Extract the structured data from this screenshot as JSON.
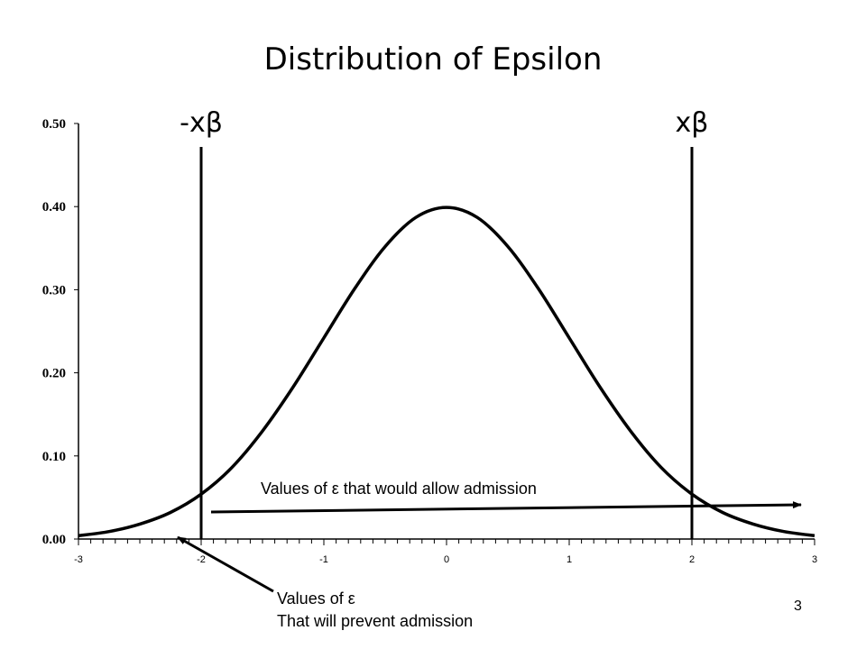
{
  "chart_data": {
    "type": "line",
    "title": "Distribution of Epsilon",
    "xlabel": "",
    "ylabel": "",
    "xlim": [
      -3,
      3
    ],
    "ylim": [
      0,
      0.5
    ],
    "x_ticks": [
      "-3",
      "-2",
      "-1",
      "0",
      "1",
      "2",
      "3"
    ],
    "y_ticks": [
      "0.00",
      "0.10",
      "0.20",
      "0.30",
      "0.40",
      "0.50"
    ],
    "grid": false,
    "series": [
      {
        "x": [
          -3.0,
          -2.75,
          -2.5,
          -2.25,
          -2.0,
          -1.75,
          -1.5,
          -1.25,
          -1.0,
          -0.75,
          -0.5,
          -0.25,
          0.0,
          0.25,
          0.5,
          0.75,
          1.0,
          1.25,
          1.5,
          1.75,
          2.0,
          2.25,
          2.5,
          2.75,
          3.0
        ],
        "values": [
          0.004,
          0.009,
          0.018,
          0.032,
          0.054,
          0.086,
          0.13,
          0.183,
          0.242,
          0.301,
          0.352,
          0.387,
          0.399,
          0.387,
          0.352,
          0.301,
          0.242,
          0.183,
          0.13,
          0.086,
          0.054,
          0.032,
          0.018,
          0.009,
          0.004
        ]
      }
    ],
    "vertical_lines": [
      {
        "x": -2,
        "label": "-xβ"
      },
      {
        "x": 2,
        "label": "xβ"
      }
    ]
  },
  "annotations": {
    "allow_text": "Values of ε that would allow admission",
    "prevent_line1": "Values of ε",
    "prevent_line2": "That will prevent admission"
  },
  "slide_number": "3"
}
